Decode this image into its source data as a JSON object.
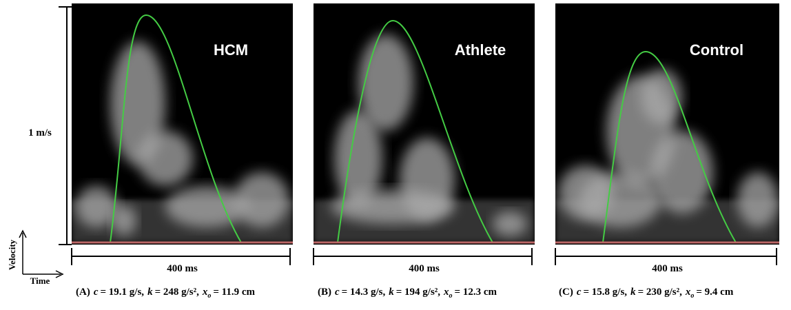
{
  "figure": {
    "y_scale": "1 m/s",
    "axes": {
      "y": "Velocity",
      "x": "Time"
    },
    "panels": [
      {
        "label": "HCM",
        "time_scale": "400 ms",
        "caption": {
          "letter": "(A)",
          "terms": [
            {
              "symbol": "c",
              "value": "= 19.1 g/s,"
            },
            {
              "symbol": "k",
              "value": "= 248 g/s²,"
            },
            {
              "symbol": "x",
              "sub": "o",
              "value": "= 11.9 cm"
            }
          ]
        }
      },
      {
        "label": "Athlete",
        "time_scale": "400 ms",
        "caption": {
          "letter": "(B)",
          "terms": [
            {
              "symbol": "c",
              "value": "= 14.3 g/s,"
            },
            {
              "symbol": "k",
              "value": "= 194 g/s²,"
            },
            {
              "symbol": "x",
              "sub": "o",
              "value": "= 12.3 cm"
            }
          ]
        }
      },
      {
        "label": "Control",
        "time_scale": "400 ms",
        "caption": {
          "letter": "(C)",
          "terms": [
            {
              "symbol": "c",
              "value": "= 15.8 g/s,"
            },
            {
              "symbol": "k",
              "value": "= 230 g/s²,"
            },
            {
              "symbol": "x",
              "sub": "o",
              "value": "= 9.4 cm"
            }
          ]
        }
      }
    ]
  }
}
